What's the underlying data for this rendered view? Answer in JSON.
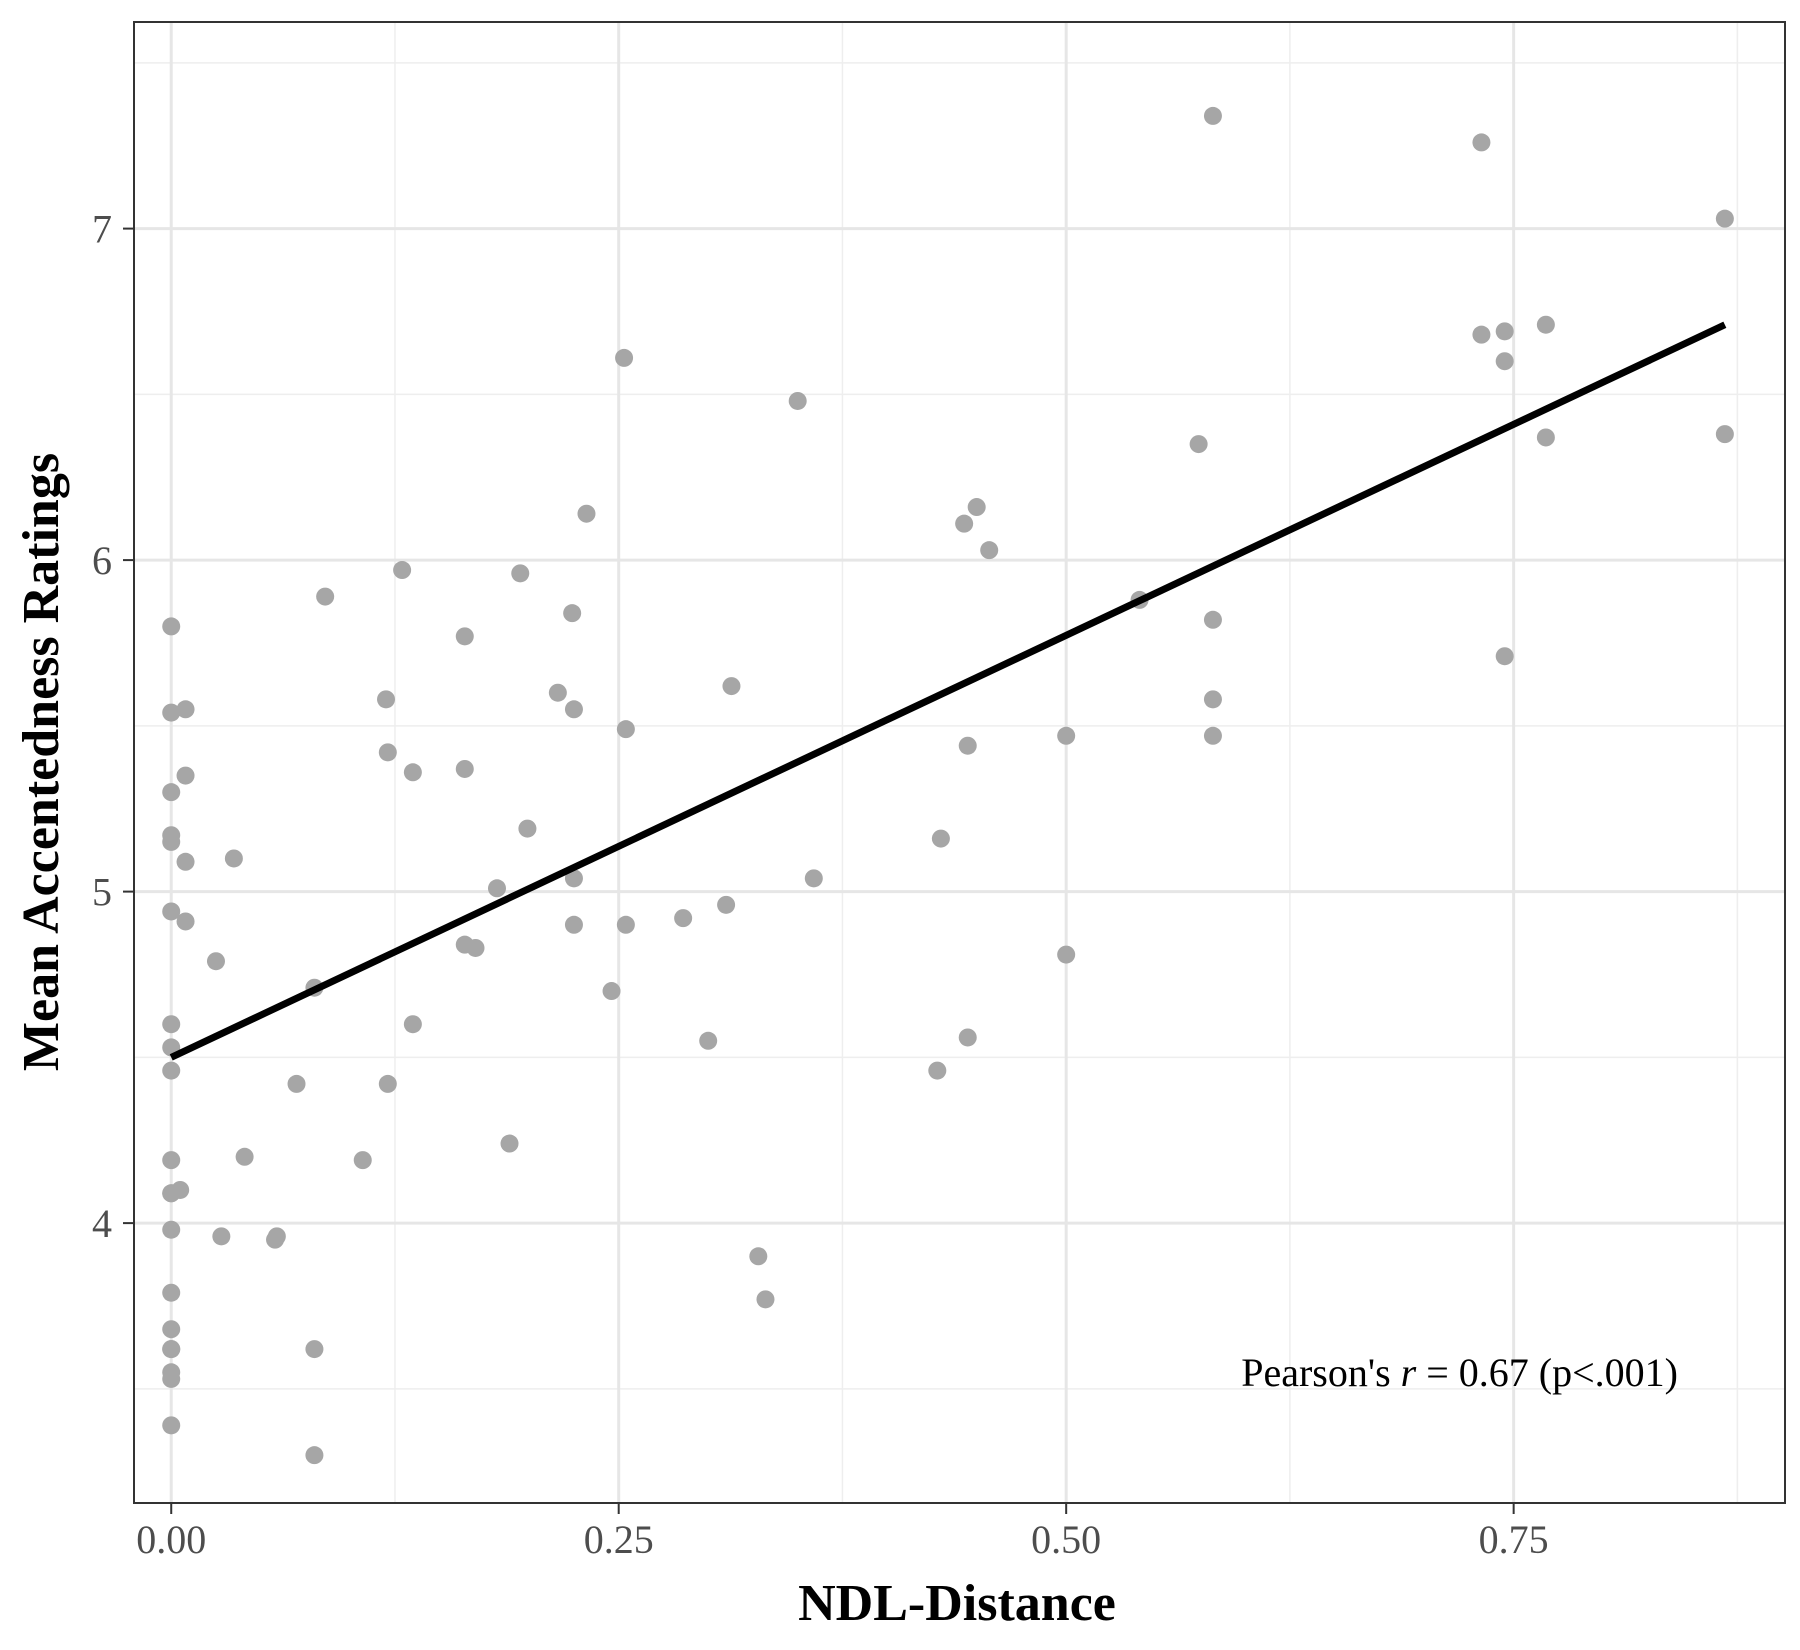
{
  "chart_data": {
    "type": "scatter",
    "title": "",
    "xlabel": "NDL-Distance",
    "ylabel": "Mean Accentedness Ratings",
    "xlim": [
      -0.0208,
      0.9016
    ],
    "ylim": [
      3.1557,
      7.6232
    ],
    "x_ticks": [
      0.0,
      0.25,
      0.5,
      0.75
    ],
    "x_tick_labels": [
      "0.00",
      "0.25",
      "0.50",
      "0.75"
    ],
    "y_ticks": [
      4,
      5,
      6,
      7
    ],
    "y_tick_labels": [
      "4",
      "5",
      "6",
      "7"
    ],
    "grid": true,
    "legend": "none",
    "point_color": "#a6a6a6",
    "line_color": "#000000",
    "panel_border_color": "#333333",
    "grid_major_color": "#e6e6e6",
    "grid_minor_color": "#eeeeee",
    "series": [
      {
        "kind": "points",
        "x": [
          0.0,
          0.0,
          0.0,
          0.0,
          0.0,
          0.0,
          0.0,
          0.0,
          0.0,
          0.0,
          0.0,
          0.0,
          0.0,
          0.0,
          0.0,
          0.0,
          0.0,
          0.0,
          0.0,
          0.0,
          0.008,
          0.008,
          0.008,
          0.008,
          0.005,
          0.025,
          0.028,
          0.035,
          0.041,
          0.058,
          0.059,
          0.07,
          0.08,
          0.08,
          0.08,
          0.086,
          0.107,
          0.12,
          0.121,
          0.121,
          0.129,
          0.135,
          0.135,
          0.164,
          0.164,
          0.164,
          0.17,
          0.182,
          0.189,
          0.195,
          0.199,
          0.216,
          0.224,
          0.225,
          0.225,
          0.225,
          0.232,
          0.246,
          0.253,
          0.254,
          0.254,
          0.286,
          0.3,
          0.31,
          0.313,
          0.328,
          0.332,
          0.35,
          0.359,
          0.428,
          0.43,
          0.443,
          0.445,
          0.445,
          0.45,
          0.457,
          0.5,
          0.5,
          0.541,
          0.574,
          0.582,
          0.582,
          0.582,
          0.582,
          0.732,
          0.732,
          0.745,
          0.745,
          0.745,
          0.768,
          0.768,
          0.868,
          0.868
        ],
        "y": [
          5.8,
          5.54,
          5.3,
          5.17,
          5.15,
          4.94,
          4.6,
          4.53,
          4.46,
          4.19,
          4.09,
          3.98,
          3.79,
          3.68,
          3.62,
          3.55,
          3.53,
          3.39,
          4.09,
          3.62,
          5.55,
          5.35,
          5.09,
          4.91,
          4.1,
          4.79,
          3.96,
          5.1,
          4.2,
          3.95,
          3.96,
          4.42,
          4.71,
          3.62,
          3.3,
          5.89,
          4.19,
          5.58,
          5.42,
          4.42,
          5.97,
          5.36,
          4.6,
          5.77,
          5.37,
          4.84,
          4.83,
          5.01,
          4.24,
          5.96,
          5.19,
          5.6,
          5.84,
          5.55,
          5.04,
          4.9,
          6.14,
          4.7,
          6.61,
          5.49,
          4.9,
          4.92,
          4.55,
          4.96,
          5.62,
          3.9,
          3.77,
          6.48,
          5.04,
          4.46,
          5.16,
          6.11,
          5.44,
          4.56,
          6.16,
          6.03,
          5.47,
          4.81,
          5.88,
          6.35,
          7.34,
          5.82,
          5.58,
          5.47,
          7.26,
          6.68,
          6.69,
          6.6,
          5.71,
          6.71,
          6.37,
          7.03,
          6.38
        ]
      },
      {
        "kind": "fit-line",
        "x": [
          0.0,
          0.868
        ],
        "y": [
          4.5,
          6.71
        ]
      }
    ],
    "annotation": {
      "prefix": "Pearson's ",
      "italic": "r",
      "suffix": " = 0.67 (p<.001)"
    }
  }
}
